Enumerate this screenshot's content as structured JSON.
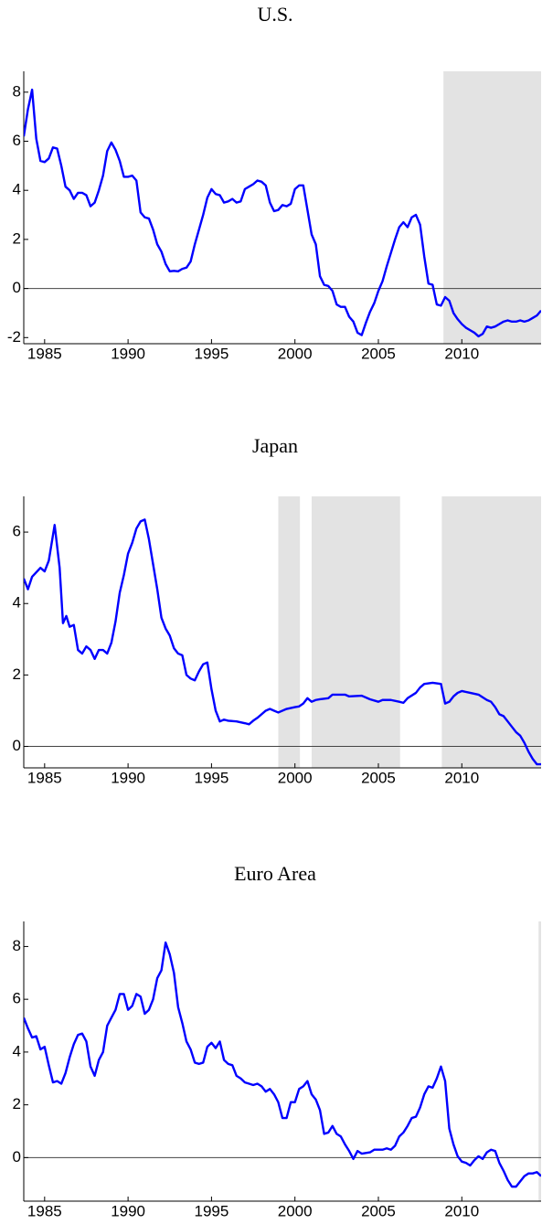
{
  "chart_data": [
    {
      "type": "line",
      "title": "U.S.",
      "color": "#0000ff",
      "shade_color": "#e3e3e3",
      "reference_line": 0,
      "shaded_regions": [
        [
          2008.9,
          2014.75
        ]
      ],
      "xlim": [
        1983.75,
        2014.75
      ],
      "xticks": [
        1985,
        1990,
        1995,
        2000,
        2005,
        2010
      ],
      "ylim": [
        -2.25,
        8.85
      ],
      "yticks": [
        -2,
        0,
        2,
        4,
        6,
        8
      ],
      "x": [
        1983.75,
        1984.0,
        1984.25,
        1984.5,
        1984.75,
        1985.0,
        1985.25,
        1985.5,
        1985.75,
        1986.0,
        1986.25,
        1986.5,
        1986.75,
        1987.0,
        1987.25,
        1987.5,
        1987.75,
        1988.0,
        1988.25,
        1988.5,
        1988.75,
        1989.0,
        1989.25,
        1989.5,
        1989.75,
        1990.0,
        1990.25,
        1990.5,
        1990.75,
        1991.0,
        1991.25,
        1991.5,
        1991.75,
        1992.0,
        1992.25,
        1992.5,
        1992.75,
        1993.0,
        1993.25,
        1993.5,
        1993.75,
        1994.0,
        1994.25,
        1994.5,
        1994.75,
        1995.0,
        1995.25,
        1995.5,
        1995.75,
        1996.0,
        1996.25,
        1996.5,
        1996.75,
        1997.0,
        1997.25,
        1997.5,
        1997.75,
        1998.0,
        1998.25,
        1998.5,
        1998.75,
        1999.0,
        1999.25,
        1999.5,
        1999.75,
        2000.0,
        2000.25,
        2000.5,
        2000.75,
        2001.0,
        2001.25,
        2001.5,
        2001.75,
        2002.0,
        2002.25,
        2002.5,
        2002.75,
        2003.0,
        2003.25,
        2003.5,
        2003.75,
        2004.0,
        2004.25,
        2004.5,
        2004.75,
        2005.0,
        2005.25,
        2005.5,
        2005.75,
        2006.0,
        2006.25,
        2006.5,
        2006.75,
        2007.0,
        2007.25,
        2007.5,
        2007.75,
        2008.0,
        2008.25,
        2008.5,
        2008.75,
        2009.0,
        2009.25,
        2009.5,
        2009.75,
        2010.0,
        2010.25,
        2010.5,
        2010.75,
        2011.0,
        2011.25,
        2011.5,
        2011.75,
        2012.0,
        2012.25,
        2012.5,
        2012.75,
        2013.0,
        2013.25,
        2013.5,
        2013.75,
        2014.0,
        2014.25,
        2014.5,
        2014.75
      ],
      "values": [
        6.2,
        7.3,
        8.1,
        6.1,
        5.2,
        5.15,
        5.3,
        5.75,
        5.7,
        5.0,
        4.15,
        4.0,
        3.65,
        3.9,
        3.9,
        3.8,
        3.35,
        3.5,
        4.0,
        4.6,
        5.6,
        5.95,
        5.65,
        5.2,
        4.55,
        4.55,
        4.6,
        4.4,
        3.1,
        2.9,
        2.85,
        2.4,
        1.8,
        1.5,
        1.0,
        0.7,
        0.72,
        0.7,
        0.8,
        0.85,
        1.1,
        1.8,
        2.4,
        3.0,
        3.7,
        4.05,
        3.85,
        3.8,
        3.5,
        3.55,
        3.65,
        3.5,
        3.55,
        4.05,
        4.15,
        4.25,
        4.4,
        4.35,
        4.2,
        3.5,
        3.15,
        3.2,
        3.4,
        3.35,
        3.45,
        4.05,
        4.2,
        4.2,
        3.2,
        2.2,
        1.8,
        0.5,
        0.15,
        0.1,
        -0.1,
        -0.65,
        -0.75,
        -0.75,
        -1.15,
        -1.35,
        -1.8,
        -1.9,
        -1.4,
        -0.95,
        -0.6,
        -0.1,
        0.3,
        0.9,
        1.45,
        2.0,
        2.5,
        2.7,
        2.5,
        2.9,
        3.0,
        2.6,
        1.3,
        0.2,
        0.15,
        -0.65,
        -0.7,
        -0.35,
        -0.5,
        -1.0,
        -1.25,
        -1.45,
        -1.6,
        -1.7,
        -1.8,
        -1.95,
        -1.85,
        -1.55,
        -1.6,
        -1.55,
        -1.45,
        -1.35,
        -1.3,
        -1.35,
        -1.35,
        -1.3,
        -1.35,
        -1.3,
        -1.2,
        -1.1,
        -0.9
      ]
    },
    {
      "type": "line",
      "title": "Japan",
      "color": "#0000ff",
      "shade_color": "#e3e3e3",
      "reference_line": 0,
      "shaded_regions": [
        [
          1999.0,
          2000.3
        ],
        [
          2001.0,
          2006.3
        ],
        [
          2008.8,
          2014.75
        ]
      ],
      "xlim": [
        1983.75,
        2014.75
      ],
      "xticks": [
        1985,
        1990,
        1995,
        2000,
        2005,
        2010
      ],
      "ylim": [
        -0.6,
        7
      ],
      "yticks": [
        0,
        2,
        4,
        6
      ],
      "x": [
        1983.75,
        1984.0,
        1984.25,
        1984.75,
        1985.0,
        1985.25,
        1985.6,
        1985.9,
        1986.1,
        1986.3,
        1986.5,
        1986.75,
        1987.0,
        1987.25,
        1987.5,
        1987.75,
        1988.0,
        1988.25,
        1988.5,
        1988.75,
        1989.0,
        1989.25,
        1989.5,
        1989.75,
        1990.0,
        1990.25,
        1990.5,
        1990.75,
        1991.0,
        1991.25,
        1991.5,
        1991.75,
        1992.0,
        1992.25,
        1992.5,
        1992.75,
        1993.0,
        1993.25,
        1993.5,
        1993.75,
        1994.0,
        1994.25,
        1994.5,
        1994.75,
        1995.0,
        1995.25,
        1995.5,
        1995.75,
        1996.0,
        1996.5,
        1997.0,
        1997.25,
        1997.5,
        1997.75,
        1998.0,
        1998.25,
        1998.5,
        1998.75,
        1999.0,
        1999.5,
        2000.0,
        2000.25,
        2000.5,
        2000.75,
        2001.0,
        2001.25,
        2001.5,
        2002.0,
        2002.25,
        2003.0,
        2003.25,
        2004.0,
        2004.5,
        2005.0,
        2005.25,
        2005.75,
        2006.25,
        2006.5,
        2006.75,
        2007.25,
        2007.5,
        2007.75,
        2008.25,
        2008.75,
        2009.0,
        2009.25,
        2009.5,
        2009.75,
        2010.0,
        2010.5,
        2011.0,
        2011.5,
        2011.75,
        2012.0,
        2012.25,
        2012.5,
        2012.75,
        2013.0,
        2013.25,
        2013.5,
        2013.75,
        2014.0,
        2014.25,
        2014.5,
        2014.75
      ],
      "values": [
        4.7,
        4.4,
        4.75,
        5.0,
        4.9,
        5.2,
        6.2,
        5.0,
        3.45,
        3.65,
        3.35,
        3.4,
        2.7,
        2.6,
        2.8,
        2.7,
        2.45,
        2.7,
        2.7,
        2.6,
        2.9,
        3.5,
        4.3,
        4.8,
        5.4,
        5.7,
        6.1,
        6.3,
        6.35,
        5.8,
        5.1,
        4.4,
        3.6,
        3.3,
        3.1,
        2.75,
        2.6,
        2.55,
        2.0,
        1.9,
        1.85,
        2.1,
        2.3,
        2.35,
        1.6,
        1.0,
        0.7,
        0.75,
        0.72,
        0.7,
        0.65,
        0.62,
        0.72,
        0.8,
        0.9,
        1.0,
        1.05,
        1.0,
        0.95,
        1.05,
        1.1,
        1.12,
        1.2,
        1.35,
        1.25,
        1.3,
        1.32,
        1.35,
        1.45,
        1.45,
        1.4,
        1.42,
        1.32,
        1.25,
        1.3,
        1.3,
        1.25,
        1.22,
        1.35,
        1.5,
        1.65,
        1.75,
        1.78,
        1.75,
        1.2,
        1.25,
        1.4,
        1.5,
        1.55,
        1.5,
        1.45,
        1.3,
        1.25,
        1.1,
        0.9,
        0.85,
        0.7,
        0.55,
        0.4,
        0.3,
        0.1,
        -0.15,
        -0.35,
        -0.5,
        -0.5
      ]
    },
    {
      "type": "line",
      "title": "Euro Area",
      "color": "#0000ff",
      "shade_color": "#e3e3e3",
      "reference_line": 0,
      "shaded_regions": [
        [
          2014.6,
          2014.75
        ]
      ],
      "xlim": [
        1983.75,
        2014.75
      ],
      "xticks": [
        1985,
        1990,
        1995,
        2000,
        2005,
        2010
      ],
      "ylim": [
        -1.65,
        8.95
      ],
      "yticks": [
        0,
        2,
        4,
        6,
        8
      ],
      "x": [
        1983.75,
        1984.0,
        1984.25,
        1984.5,
        1984.75,
        1985.0,
        1985.25,
        1985.5,
        1985.75,
        1986.0,
        1986.25,
        1986.5,
        1986.75,
        1987.0,
        1987.25,
        1987.5,
        1987.75,
        1988.0,
        1988.25,
        1988.5,
        1988.75,
        1989.0,
        1989.25,
        1989.5,
        1989.75,
        1990.0,
        1990.25,
        1990.5,
        1990.75,
        1991.0,
        1991.25,
        1991.5,
        1991.75,
        1992.0,
        1992.25,
        1992.5,
        1992.75,
        1993.0,
        1993.25,
        1993.5,
        1993.75,
        1994.0,
        1994.25,
        1994.5,
        1994.75,
        1995.0,
        1995.25,
        1995.5,
        1995.75,
        1996.0,
        1996.25,
        1996.5,
        1996.75,
        1997.0,
        1997.25,
        1997.5,
        1997.75,
        1998.0,
        1998.25,
        1998.5,
        1998.75,
        1999.0,
        1999.25,
        1999.5,
        1999.75,
        2000.0,
        2000.25,
        2000.5,
        2000.75,
        2001.0,
        2001.25,
        2001.5,
        2001.75,
        2002.0,
        2002.25,
        2002.5,
        2002.75,
        2003.0,
        2003.25,
        2003.5,
        2003.75,
        2004.0,
        2004.5,
        2004.75,
        2005.25,
        2005.5,
        2005.75,
        2006.0,
        2006.25,
        2006.5,
        2006.75,
        2007.0,
        2007.25,
        2007.5,
        2007.75,
        2008.0,
        2008.25,
        2008.5,
        2008.75,
        2009.0,
        2009.25,
        2009.5,
        2009.75,
        2010.0,
        2010.25,
        2010.5,
        2010.75,
        2011.0,
        2011.25,
        2011.5,
        2011.75,
        2012.0,
        2012.25,
        2012.5,
        2012.75,
        2013.0,
        2013.25,
        2013.5,
        2013.75,
        2014.0,
        2014.25,
        2014.5,
        2014.75
      ],
      "values": [
        5.3,
        4.9,
        4.55,
        4.6,
        4.1,
        4.2,
        3.5,
        2.85,
        2.9,
        2.8,
        3.2,
        3.8,
        4.3,
        4.65,
        4.7,
        4.4,
        3.45,
        3.1,
        3.7,
        4.0,
        5.0,
        5.3,
        5.6,
        6.2,
        6.2,
        5.6,
        5.75,
        6.2,
        6.1,
        5.45,
        5.6,
        6.0,
        6.8,
        7.1,
        8.15,
        7.7,
        7.0,
        5.7,
        5.1,
        4.4,
        4.1,
        3.6,
        3.55,
        3.6,
        4.2,
        4.35,
        4.15,
        4.4,
        3.7,
        3.55,
        3.5,
        3.1,
        3.0,
        2.85,
        2.8,
        2.75,
        2.8,
        2.7,
        2.5,
        2.6,
        2.4,
        2.1,
        1.5,
        1.5,
        2.1,
        2.1,
        2.6,
        2.7,
        2.9,
        2.4,
        2.2,
        1.8,
        0.9,
        0.95,
        1.2,
        0.9,
        0.8,
        0.5,
        0.25,
        -0.05,
        0.25,
        0.15,
        0.2,
        0.3,
        0.3,
        0.35,
        0.3,
        0.45,
        0.8,
        0.95,
        1.2,
        1.5,
        1.55,
        1.9,
        2.4,
        2.7,
        2.65,
        3.0,
        3.45,
        2.9,
        1.1,
        0.5,
        0.05,
        -0.15,
        -0.2,
        -0.3,
        -0.1,
        0.05,
        -0.05,
        0.2,
        0.3,
        0.25,
        -0.2,
        -0.5,
        -0.85,
        -1.1,
        -1.1,
        -0.9,
        -0.7,
        -0.6,
        -0.6,
        -0.55,
        -0.7
      ]
    }
  ]
}
